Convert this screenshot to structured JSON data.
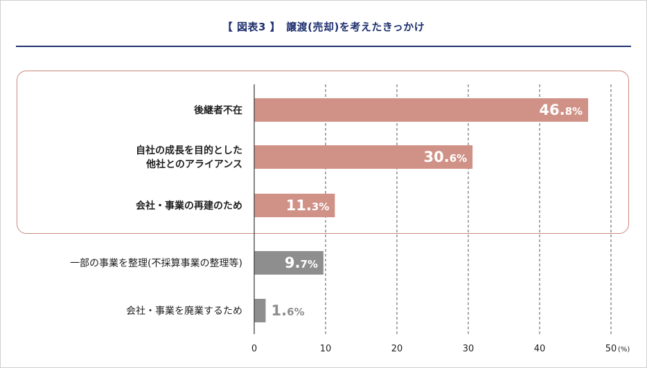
{
  "title": "【 図表3 】　譲渡(売却)を考えたきっかけ",
  "colors": {
    "accent_bar": "#d09287",
    "gray_bar": "#8e8e8e",
    "title": "#1d2f6f",
    "highlight_border": "#c9877c"
  },
  "chart_data": {
    "type": "bar",
    "orientation": "horizontal",
    "categories": [
      [
        "後継者不在"
      ],
      [
        "自社の成長を目的とした",
        "他社とのアライアンス"
      ],
      [
        "会社・事業の再建のため"
      ],
      [
        "一部の事業を整理(不採算事業の整理等)"
      ],
      [
        "会社・事業を廃業するため"
      ]
    ],
    "values": [
      46.8,
      30.6,
      11.3,
      9.7,
      1.6
    ],
    "value_labels": [
      {
        "int": "46.",
        "dec": "8%"
      },
      {
        "int": "30.",
        "dec": "6%"
      },
      {
        "int": "11.",
        "dec": "3%"
      },
      {
        "int": "9.",
        "dec": "7%"
      },
      {
        "int": "1.",
        "dec": "6%"
      }
    ],
    "highlighted": [
      true,
      true,
      true,
      false,
      false
    ],
    "label_bold": [
      true,
      true,
      true,
      false,
      false
    ],
    "xlim": [
      0,
      50
    ],
    "xticks": [
      "0",
      "10",
      "20",
      "30",
      "40",
      "50"
    ],
    "x_unit": "(%)",
    "grid": "vertical-dashed"
  }
}
